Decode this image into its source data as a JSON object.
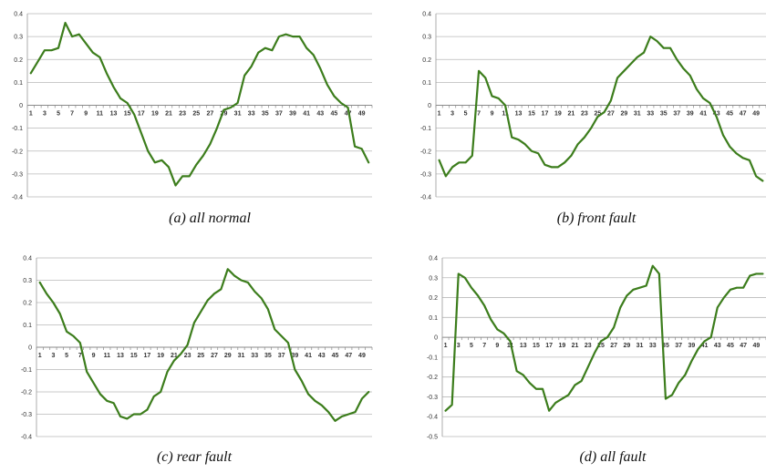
{
  "chart_data": [
    {
      "type": "line",
      "caption": "(a) all normal",
      "x": [
        1,
        2,
        3,
        4,
        5,
        6,
        7,
        8,
        9,
        10,
        11,
        12,
        13,
        14,
        15,
        16,
        17,
        18,
        19,
        20,
        21,
        22,
        23,
        24,
        25,
        26,
        27,
        28,
        29,
        30,
        31,
        32,
        33,
        34,
        35,
        36,
        37,
        38,
        39,
        40,
        41,
        42,
        43,
        44,
        45,
        46,
        47,
        48,
        49,
        50
      ],
      "x_tick_labels": [
        "1",
        "3",
        "5",
        "7",
        "9",
        "11",
        "13",
        "15",
        "17",
        "19",
        "21",
        "23",
        "25",
        "27",
        "29",
        "31",
        "33",
        "35",
        "37",
        "39",
        "41",
        "43",
        "45",
        "47",
        "49"
      ],
      "y_tick_labels": [
        "0.4",
        "0.3",
        "0.2",
        "0.1",
        "0",
        "-0.1",
        "-0.2",
        "-0.3",
        "-0.4"
      ],
      "ylim": [
        -0.4,
        0.4
      ],
      "grid": true,
      "series": [
        {
          "color": "#3c7d1c",
          "values": [
            0.14,
            0.19,
            0.24,
            0.24,
            0.25,
            0.36,
            0.3,
            0.31,
            0.27,
            0.23,
            0.21,
            0.14,
            0.08,
            0.03,
            0.01,
            -0.04,
            -0.12,
            -0.2,
            -0.25,
            -0.24,
            -0.27,
            -0.35,
            -0.31,
            -0.31,
            -0.26,
            -0.22,
            -0.17,
            -0.1,
            -0.02,
            -0.01,
            0.01,
            0.13,
            0.17,
            0.23,
            0.25,
            0.24,
            0.3,
            0.31,
            0.3,
            0.3,
            0.25,
            0.22,
            0.16,
            0.09,
            0.04,
            0.01,
            -0.01,
            -0.18,
            -0.19,
            -0.25
          ]
        }
      ]
    },
    {
      "type": "line",
      "caption": "(b) front fault",
      "x": [
        1,
        2,
        3,
        4,
        5,
        6,
        7,
        8,
        9,
        10,
        11,
        12,
        13,
        14,
        15,
        16,
        17,
        18,
        19,
        20,
        21,
        22,
        23,
        24,
        25,
        26,
        27,
        28,
        29,
        30,
        31,
        32,
        33,
        34,
        35,
        36,
        37,
        38,
        39,
        40,
        41,
        42,
        43,
        44,
        45,
        46,
        47,
        48,
        49,
        50
      ],
      "x_tick_labels": [
        "1",
        "3",
        "5",
        "7",
        "9",
        "11",
        "13",
        "15",
        "17",
        "19",
        "21",
        "23",
        "25",
        "27",
        "29",
        "31",
        "33",
        "35",
        "37",
        "39",
        "41",
        "43",
        "45",
        "47",
        "49"
      ],
      "y_tick_labels": [
        "0.4",
        "0.3",
        "0.2",
        "0.1",
        "0",
        "-0.1",
        "-0.2",
        "-0.3",
        "-0.4"
      ],
      "ylim": [
        -0.4,
        0.4
      ],
      "grid": true,
      "series": [
        {
          "color": "#3c7d1c",
          "values": [
            -0.24,
            -0.31,
            -0.27,
            -0.25,
            -0.25,
            -0.22,
            0.15,
            0.12,
            0.04,
            0.03,
            0.0,
            -0.14,
            -0.15,
            -0.17,
            -0.2,
            -0.21,
            -0.26,
            -0.27,
            -0.27,
            -0.25,
            -0.22,
            -0.17,
            -0.14,
            -0.1,
            -0.05,
            -0.03,
            0.02,
            0.12,
            0.15,
            0.18,
            0.21,
            0.23,
            0.3,
            0.28,
            0.25,
            0.25,
            0.2,
            0.16,
            0.13,
            0.07,
            0.03,
            0.01,
            -0.05,
            -0.13,
            -0.18,
            -0.21,
            -0.23,
            -0.24,
            -0.31,
            -0.33
          ]
        }
      ]
    },
    {
      "type": "line",
      "caption": "(c) rear fault",
      "x": [
        1,
        2,
        3,
        4,
        5,
        6,
        7,
        8,
        9,
        10,
        11,
        12,
        13,
        14,
        15,
        16,
        17,
        18,
        19,
        20,
        21,
        22,
        23,
        24,
        25,
        26,
        27,
        28,
        29,
        30,
        31,
        32,
        33,
        34,
        35,
        36,
        37,
        38,
        39,
        40,
        41,
        42,
        43,
        44,
        45,
        46,
        47,
        48,
        49,
        50
      ],
      "x_tick_labels": [
        "1",
        "3",
        "5",
        "7",
        "9",
        "11",
        "13",
        "15",
        "17",
        "19",
        "21",
        "23",
        "25",
        "27",
        "29",
        "31",
        "33",
        "35",
        "37",
        "39",
        "41",
        "43",
        "45",
        "47",
        "49"
      ],
      "y_tick_labels": [
        "0.4",
        "0.3",
        "0.2",
        "0.1",
        "0",
        "-0.1",
        "-0.2",
        "-0.3",
        "-0.4"
      ],
      "ylim": [
        -0.4,
        0.4
      ],
      "grid": true,
      "series": [
        {
          "color": "#3c7d1c",
          "values": [
            0.29,
            0.24,
            0.2,
            0.15,
            0.07,
            0.05,
            0.02,
            -0.11,
            -0.16,
            -0.21,
            -0.24,
            -0.25,
            -0.31,
            -0.32,
            -0.3,
            -0.3,
            -0.28,
            -0.22,
            -0.2,
            -0.11,
            -0.06,
            -0.03,
            0.01,
            0.11,
            0.16,
            0.21,
            0.24,
            0.26,
            0.35,
            0.32,
            0.3,
            0.29,
            0.25,
            0.22,
            0.17,
            0.08,
            0.05,
            0.02,
            -0.1,
            -0.15,
            -0.21,
            -0.24,
            -0.26,
            -0.29,
            -0.33,
            -0.31,
            -0.3,
            -0.29,
            -0.23,
            -0.2
          ]
        }
      ]
    },
    {
      "type": "line",
      "caption": "(d) all fault",
      "x": [
        1,
        2,
        3,
        4,
        5,
        6,
        7,
        8,
        9,
        10,
        11,
        12,
        13,
        14,
        15,
        16,
        17,
        18,
        19,
        20,
        21,
        22,
        23,
        24,
        25,
        26,
        27,
        28,
        29,
        30,
        31,
        32,
        33,
        34,
        35,
        36,
        37,
        38,
        39,
        40,
        41,
        42,
        43,
        44,
        45,
        46,
        47,
        48,
        49,
        50
      ],
      "x_tick_labels": [
        "1",
        "3",
        "5",
        "7",
        "9",
        "11",
        "13",
        "15",
        "17",
        "19",
        "21",
        "23",
        "25",
        "27",
        "29",
        "31",
        "33",
        "35",
        "37",
        "39",
        "41",
        "43",
        "45",
        "47",
        "49"
      ],
      "y_tick_labels": [
        "0.4",
        "0.3",
        "0.2",
        "0.1",
        "0",
        "-0.1",
        "-0.2",
        "-0.3",
        "-0.4",
        "-0.5"
      ],
      "ylim": [
        -0.5,
        0.4
      ],
      "grid": true,
      "series": [
        {
          "color": "#3c7d1c",
          "values": [
            -0.37,
            -0.34,
            0.32,
            0.3,
            0.25,
            0.21,
            0.16,
            0.09,
            0.04,
            0.02,
            -0.02,
            -0.17,
            -0.19,
            -0.23,
            -0.26,
            -0.26,
            -0.37,
            -0.33,
            -0.31,
            -0.29,
            -0.24,
            -0.22,
            -0.15,
            -0.08,
            -0.02,
            0.0,
            0.05,
            0.15,
            0.21,
            0.24,
            0.25,
            0.26,
            0.36,
            0.32,
            -0.31,
            -0.29,
            -0.23,
            -0.19,
            -0.12,
            -0.06,
            -0.02,
            0.0,
            0.15,
            0.2,
            0.24,
            0.25,
            0.25,
            0.31,
            0.32,
            0.32
          ]
        }
      ]
    }
  ]
}
